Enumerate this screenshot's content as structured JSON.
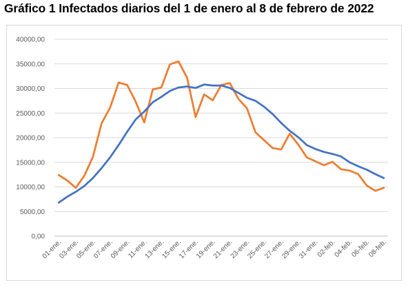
{
  "title": "Gráfico 1 Infectados diarios del 1 de enero al 8 de febrero de 2022",
  "chart_data": {
    "type": "line",
    "title": "Gráfico 1 Infectados diarios del 1 de enero al 8 de febrero de 2022",
    "xlabel": "",
    "ylabel": "",
    "ylim": [
      0,
      40000
    ],
    "y_ticks": [
      "0,00",
      "5000,00",
      "10000,00",
      "15000,00",
      "20000,00",
      "25000,00",
      "30000,00",
      "35000,00",
      "40000,00"
    ],
    "x_tick_labels": [
      "01-ene.",
      "03-ene.",
      "05-ene.",
      "07-ene.",
      "09-ene.",
      "11-ene.",
      "13-ene.",
      "15-ene.",
      "17-ene.",
      "19-ene.",
      "21-ene.",
      "23-ene.",
      "25-ene.",
      "27-ene.",
      "29-ene.",
      "31-ene.",
      "02-feb.",
      "04-feb.",
      "06-feb.",
      "08-feb."
    ],
    "grid": true,
    "legend": "none",
    "categories": [
      "01-ene.",
      "02-ene.",
      "03-ene.",
      "04-ene.",
      "05-ene.",
      "06-ene.",
      "07-ene.",
      "08-ene.",
      "09-ene.",
      "10-ene.",
      "11-ene.",
      "12-ene.",
      "13-ene.",
      "14-ene.",
      "15-ene.",
      "16-ene.",
      "17-ene.",
      "18-ene.",
      "19-ene.",
      "20-ene.",
      "21-ene.",
      "22-ene.",
      "23-ene.",
      "24-ene.",
      "25-ene.",
      "26-ene.",
      "27-ene.",
      "28-ene.",
      "29-ene.",
      "30-ene.",
      "31-ene.",
      "01-feb.",
      "02-feb.",
      "03-feb.",
      "04-feb.",
      "05-feb.",
      "06-feb.",
      "07-feb.",
      "08-feb."
    ],
    "series": [
      {
        "color": "#ed7d31",
        "values": [
          12400,
          11300,
          9800,
          12300,
          16100,
          22900,
          26100,
          31200,
          30700,
          27300,
          23100,
          29800,
          30200,
          34900,
          35500,
          32200,
          24200,
          28800,
          27600,
          30700,
          31100,
          27900,
          26000,
          21100,
          19500,
          17900,
          17600,
          20800,
          18600,
          16000,
          15200,
          14400,
          15100,
          13600,
          13300,
          12600,
          10300,
          9200,
          9800
        ]
      },
      {
        "color": "#4472c4",
        "values": [
          6800,
          8000,
          9000,
          10200,
          11800,
          13800,
          16000,
          18500,
          21200,
          23700,
          25300,
          27200,
          28300,
          29500,
          30200,
          30400,
          30100,
          30800,
          30600,
          30600,
          30100,
          29100,
          28100,
          27500,
          26300,
          24800,
          23000,
          21400,
          20100,
          18500,
          17700,
          17100,
          16700,
          16200,
          15000,
          14200,
          13500,
          12600,
          11800
        ]
      }
    ]
  }
}
